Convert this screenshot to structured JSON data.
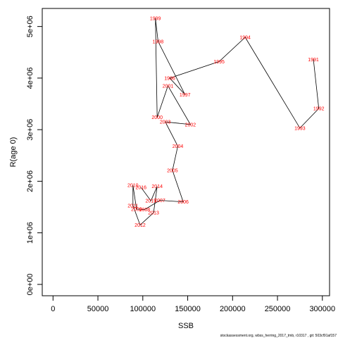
{
  "chart_data": {
    "type": "scatter",
    "title": "",
    "xlabel": "SSB",
    "ylabel": "R(age 0)",
    "xlim": [
      -12000,
      308000
    ],
    "ylim": [
      -220000,
      5350000
    ],
    "x_ticks": [
      {
        "value": 0,
        "label": "0"
      },
      {
        "value": 50000,
        "label": "50000"
      },
      {
        "value": 100000,
        "label": "100000"
      },
      {
        "value": 150000,
        "label": "150000"
      },
      {
        "value": 200000,
        "label": "200000"
      },
      {
        "value": 250000,
        "label": "250000"
      },
      {
        "value": 300000,
        "label": "300000"
      }
    ],
    "y_ticks": [
      {
        "value": 0,
        "label": "0e+00"
      },
      {
        "value": 1000000,
        "label": "1e+06"
      },
      {
        "value": 2000000,
        "label": "2e+06"
      },
      {
        "value": 3000000,
        "label": "3e+06"
      },
      {
        "value": 4000000,
        "label": "4e+06"
      },
      {
        "value": 5000000,
        "label": "5e+06"
      }
    ],
    "line_color": "#000000",
    "label_color": "#ff0000",
    "grid": false,
    "points": [
      {
        "label": "1991",
        "x": 290000,
        "y": 4360000
      },
      {
        "label": "1992",
        "x": 296000,
        "y": 3410000
      },
      {
        "label": "1993",
        "x": 275000,
        "y": 3030000
      },
      {
        "label": "1994",
        "x": 214000,
        "y": 4790000
      },
      {
        "label": "1995",
        "x": 185000,
        "y": 4320000
      },
      {
        "label": "1996",
        "x": 130000,
        "y": 4000000
      },
      {
        "label": "1997",
        "x": 147000,
        "y": 3680000
      },
      {
        "label": "1998",
        "x": 117000,
        "y": 4710000
      },
      {
        "label": "1999",
        "x": 114000,
        "y": 5160000
      },
      {
        "label": "2000",
        "x": 116000,
        "y": 3240000
      },
      {
        "label": "2001",
        "x": 128000,
        "y": 3850000
      },
      {
        "label": "2002",
        "x": 153000,
        "y": 3100000
      },
      {
        "label": "2003",
        "x": 125000,
        "y": 3150000
      },
      {
        "label": "2004",
        "x": 139000,
        "y": 2680000
      },
      {
        "label": "2005",
        "x": 133000,
        "y": 2210000
      },
      {
        "label": "2006",
        "x": 145000,
        "y": 1600000
      },
      {
        "label": "2007",
        "x": 119000,
        "y": 1630000
      },
      {
        "label": "2008",
        "x": 102000,
        "y": 1450000
      },
      {
        "label": "2009",
        "x": 93000,
        "y": 1460000
      },
      {
        "label": "2010",
        "x": 89000,
        "y": 1920000
      },
      {
        "label": "2011",
        "x": 89000,
        "y": 1530000
      },
      {
        "label": "2012",
        "x": 97000,
        "y": 1150000
      },
      {
        "label": "2013",
        "x": 112000,
        "y": 1390000
      },
      {
        "label": "2014",
        "x": 116000,
        "y": 1900000
      },
      {
        "label": "2015",
        "x": 109000,
        "y": 1620000
      },
      {
        "label": "2016",
        "x": 98000,
        "y": 1880000
      }
    ]
  },
  "footer": "stockassessment.org,  wbss_herring_2017_tmb,  r10317 ,  git: 503cf91af157"
}
